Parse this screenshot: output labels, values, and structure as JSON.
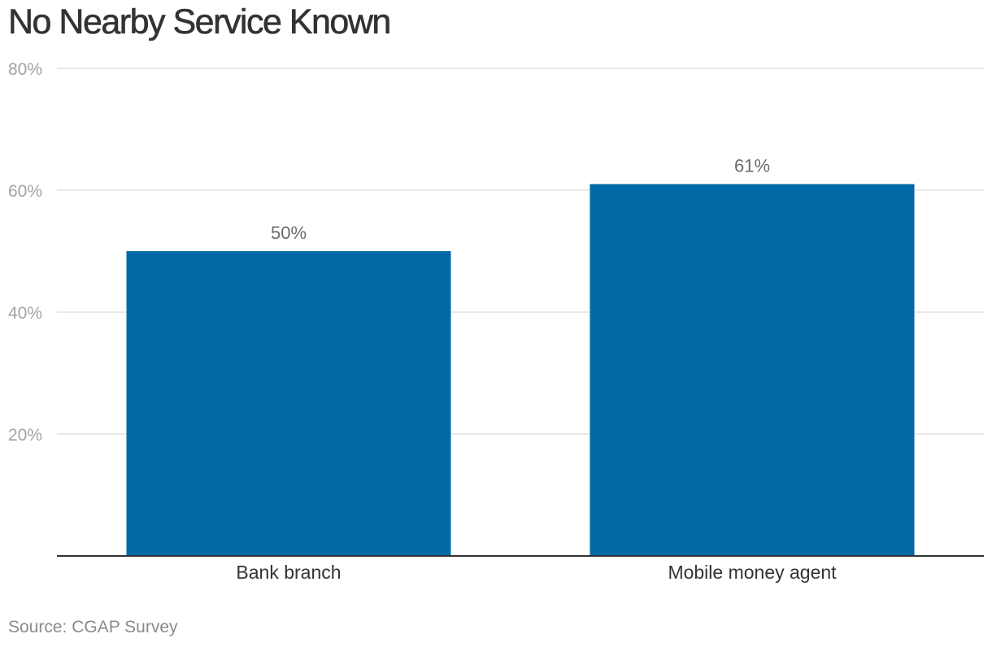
{
  "title": "No Nearby Service Known",
  "source": "Source: CGAP Survey",
  "colors": {
    "bar": "#0069a6",
    "grid": "#e2e2e2",
    "axis": "#333333",
    "tick_label": "#a3a3a3",
    "data_label": "#6b6b6b",
    "category_label": "#333333"
  },
  "chart_data": {
    "type": "bar",
    "categories": [
      "Bank branch",
      "Mobile money agent"
    ],
    "values": [
      50,
      61
    ],
    "data_labels": [
      "50%",
      "61%"
    ],
    "yticks": [
      20,
      40,
      60,
      80
    ],
    "ytick_labels": [
      "20%",
      "40%",
      "60%",
      "80%"
    ],
    "ylim": [
      0,
      80
    ],
    "grid": true,
    "legend": "none"
  }
}
